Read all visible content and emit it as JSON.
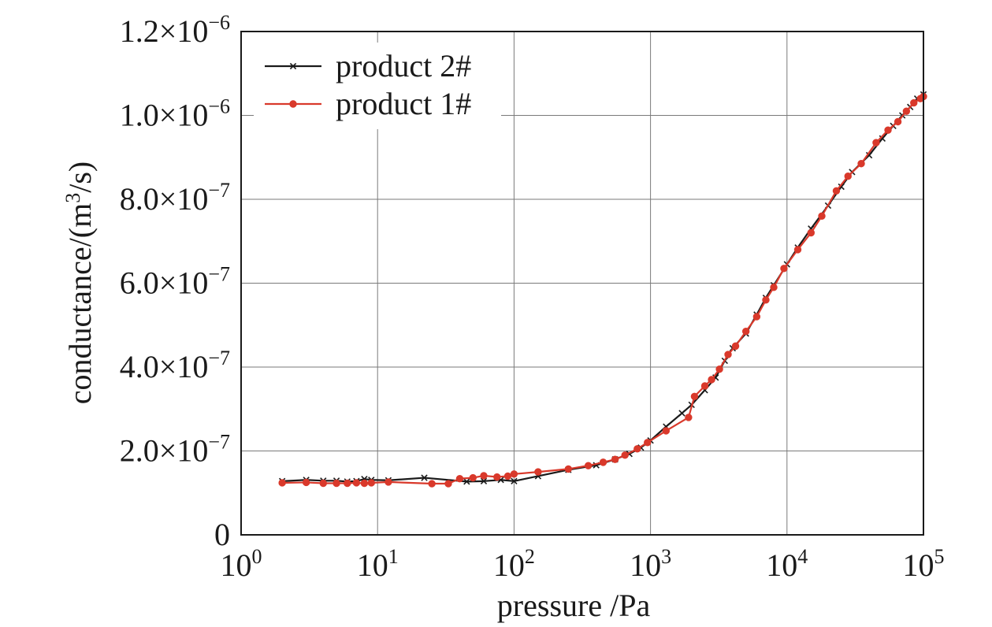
{
  "chart_data": {
    "type": "line",
    "xlabel": "pressure /Pa",
    "ylabel": "conductance/(m³/s)",
    "xscale": "log",
    "xlim": [
      1,
      100000
    ],
    "ylim": [
      0,
      1.2e-06
    ],
    "grid": true,
    "legend_position": "top-left",
    "x_ticks": [
      {
        "value": 1,
        "base": "10",
        "exp": "0"
      },
      {
        "value": 10,
        "base": "10",
        "exp": "1"
      },
      {
        "value": 100,
        "base": "10",
        "exp": "2"
      },
      {
        "value": 1000,
        "base": "10",
        "exp": "3"
      },
      {
        "value": 10000,
        "base": "10",
        "exp": "4"
      },
      {
        "value": 100000,
        "base": "10",
        "exp": "5"
      }
    ],
    "y_ticks": [
      {
        "value": 0,
        "mantissa": "0",
        "exp": ""
      },
      {
        "value": 2e-07,
        "mantissa": "2.0×10",
        "exp": "−7"
      },
      {
        "value": 4e-07,
        "mantissa": "4.0×10",
        "exp": "−7"
      },
      {
        "value": 6e-07,
        "mantissa": "6.0×10",
        "exp": "−7"
      },
      {
        "value": 8e-07,
        "mantissa": "8.0×10",
        "exp": "−7"
      },
      {
        "value": 1e-06,
        "mantissa": "1.0×10",
        "exp": "−6"
      },
      {
        "value": 1.2e-06,
        "mantissa": "1.2×10",
        "exp": "−6"
      }
    ],
    "series": [
      {
        "name": "product 2#",
        "color": "#1a1a1a",
        "marker": "x",
        "points": [
          [
            2,
            1.28e-07
          ],
          [
            3,
            1.31e-07
          ],
          [
            4,
            1.29e-07
          ],
          [
            5,
            1.29e-07
          ],
          [
            6,
            1.27e-07
          ],
          [
            7,
            1.28e-07
          ],
          [
            8,
            1.33e-07
          ],
          [
            9,
            1.31e-07
          ],
          [
            12,
            1.3e-07
          ],
          [
            22,
            1.36e-07
          ],
          [
            45,
            1.27e-07
          ],
          [
            60,
            1.28e-07
          ],
          [
            80,
            1.31e-07
          ],
          [
            100,
            1.28e-07
          ],
          [
            150,
            1.4e-07
          ],
          [
            250,
            1.55e-07
          ],
          [
            400,
            1.66e-07
          ],
          [
            550,
            1.8e-07
          ],
          [
            700,
            1.93e-07
          ],
          [
            850,
            2.08e-07
          ],
          [
            1000,
            2.25e-07
          ],
          [
            1300,
            2.58e-07
          ],
          [
            1700,
            2.9e-07
          ],
          [
            2000,
            3.1e-07
          ],
          [
            2500,
            3.45e-07
          ],
          [
            3000,
            3.75e-07
          ],
          [
            3500,
            4.15e-07
          ],
          [
            4000,
            4.45e-07
          ],
          [
            5000,
            4.8e-07
          ],
          [
            6000,
            5.25e-07
          ],
          [
            7000,
            5.65e-07
          ],
          [
            8000,
            5.95e-07
          ],
          [
            10000,
            6.45e-07
          ],
          [
            12000,
            6.85e-07
          ],
          [
            15000,
            7.3e-07
          ],
          [
            20000,
            7.85e-07
          ],
          [
            25000,
            8.3e-07
          ],
          [
            30000,
            8.65e-07
          ],
          [
            40000,
            9.05e-07
          ],
          [
            50000,
            9.45e-07
          ],
          [
            60000,
            9.75e-07
          ],
          [
            70000,
            1e-06
          ],
          [
            80000,
            1.02e-06
          ],
          [
            90000,
            1.04e-06
          ],
          [
            100000,
            1.05e-06
          ]
        ]
      },
      {
        "name": "product 1#",
        "color": "#d9392b",
        "marker": "circle",
        "points": [
          [
            2,
            1.24e-07
          ],
          [
            3,
            1.25e-07
          ],
          [
            4,
            1.23e-07
          ],
          [
            5,
            1.23e-07
          ],
          [
            6,
            1.23e-07
          ],
          [
            7,
            1.24e-07
          ],
          [
            8,
            1.23e-07
          ],
          [
            9,
            1.24e-07
          ],
          [
            12,
            1.26e-07
          ],
          [
            25,
            1.22e-07
          ],
          [
            33,
            1.22e-07
          ],
          [
            40,
            1.34e-07
          ],
          [
            50,
            1.36e-07
          ],
          [
            60,
            1.41e-07
          ],
          [
            75,
            1.38e-07
          ],
          [
            90,
            1.4e-07
          ],
          [
            100,
            1.45e-07
          ],
          [
            150,
            1.5e-07
          ],
          [
            250,
            1.57e-07
          ],
          [
            350,
            1.65e-07
          ],
          [
            450,
            1.73e-07
          ],
          [
            550,
            1.8e-07
          ],
          [
            650,
            1.9e-07
          ],
          [
            800,
            2.05e-07
          ],
          [
            950,
            2.2e-07
          ],
          [
            1300,
            2.48e-07
          ],
          [
            1900,
            2.8e-07
          ],
          [
            2100,
            3.3e-07
          ],
          [
            2500,
            3.55e-07
          ],
          [
            2800,
            3.7e-07
          ],
          [
            3200,
            3.95e-07
          ],
          [
            3700,
            4.3e-07
          ],
          [
            4200,
            4.5e-07
          ],
          [
            5000,
            4.85e-07
          ],
          [
            6000,
            5.2e-07
          ],
          [
            7000,
            5.6e-07
          ],
          [
            8000,
            5.9e-07
          ],
          [
            9500,
            6.35e-07
          ],
          [
            12000,
            6.8e-07
          ],
          [
            15000,
            7.2e-07
          ],
          [
            18000,
            7.6e-07
          ],
          [
            23000,
            8.2e-07
          ],
          [
            28000,
            8.55e-07
          ],
          [
            35000,
            8.85e-07
          ],
          [
            45000,
            9.35e-07
          ],
          [
            55000,
            9.65e-07
          ],
          [
            65000,
            9.85e-07
          ],
          [
            75000,
            1.01e-06
          ],
          [
            85000,
            1.03e-06
          ],
          [
            95000,
            1.04e-06
          ],
          [
            100000,
            1.045e-06
          ]
        ]
      }
    ]
  }
}
